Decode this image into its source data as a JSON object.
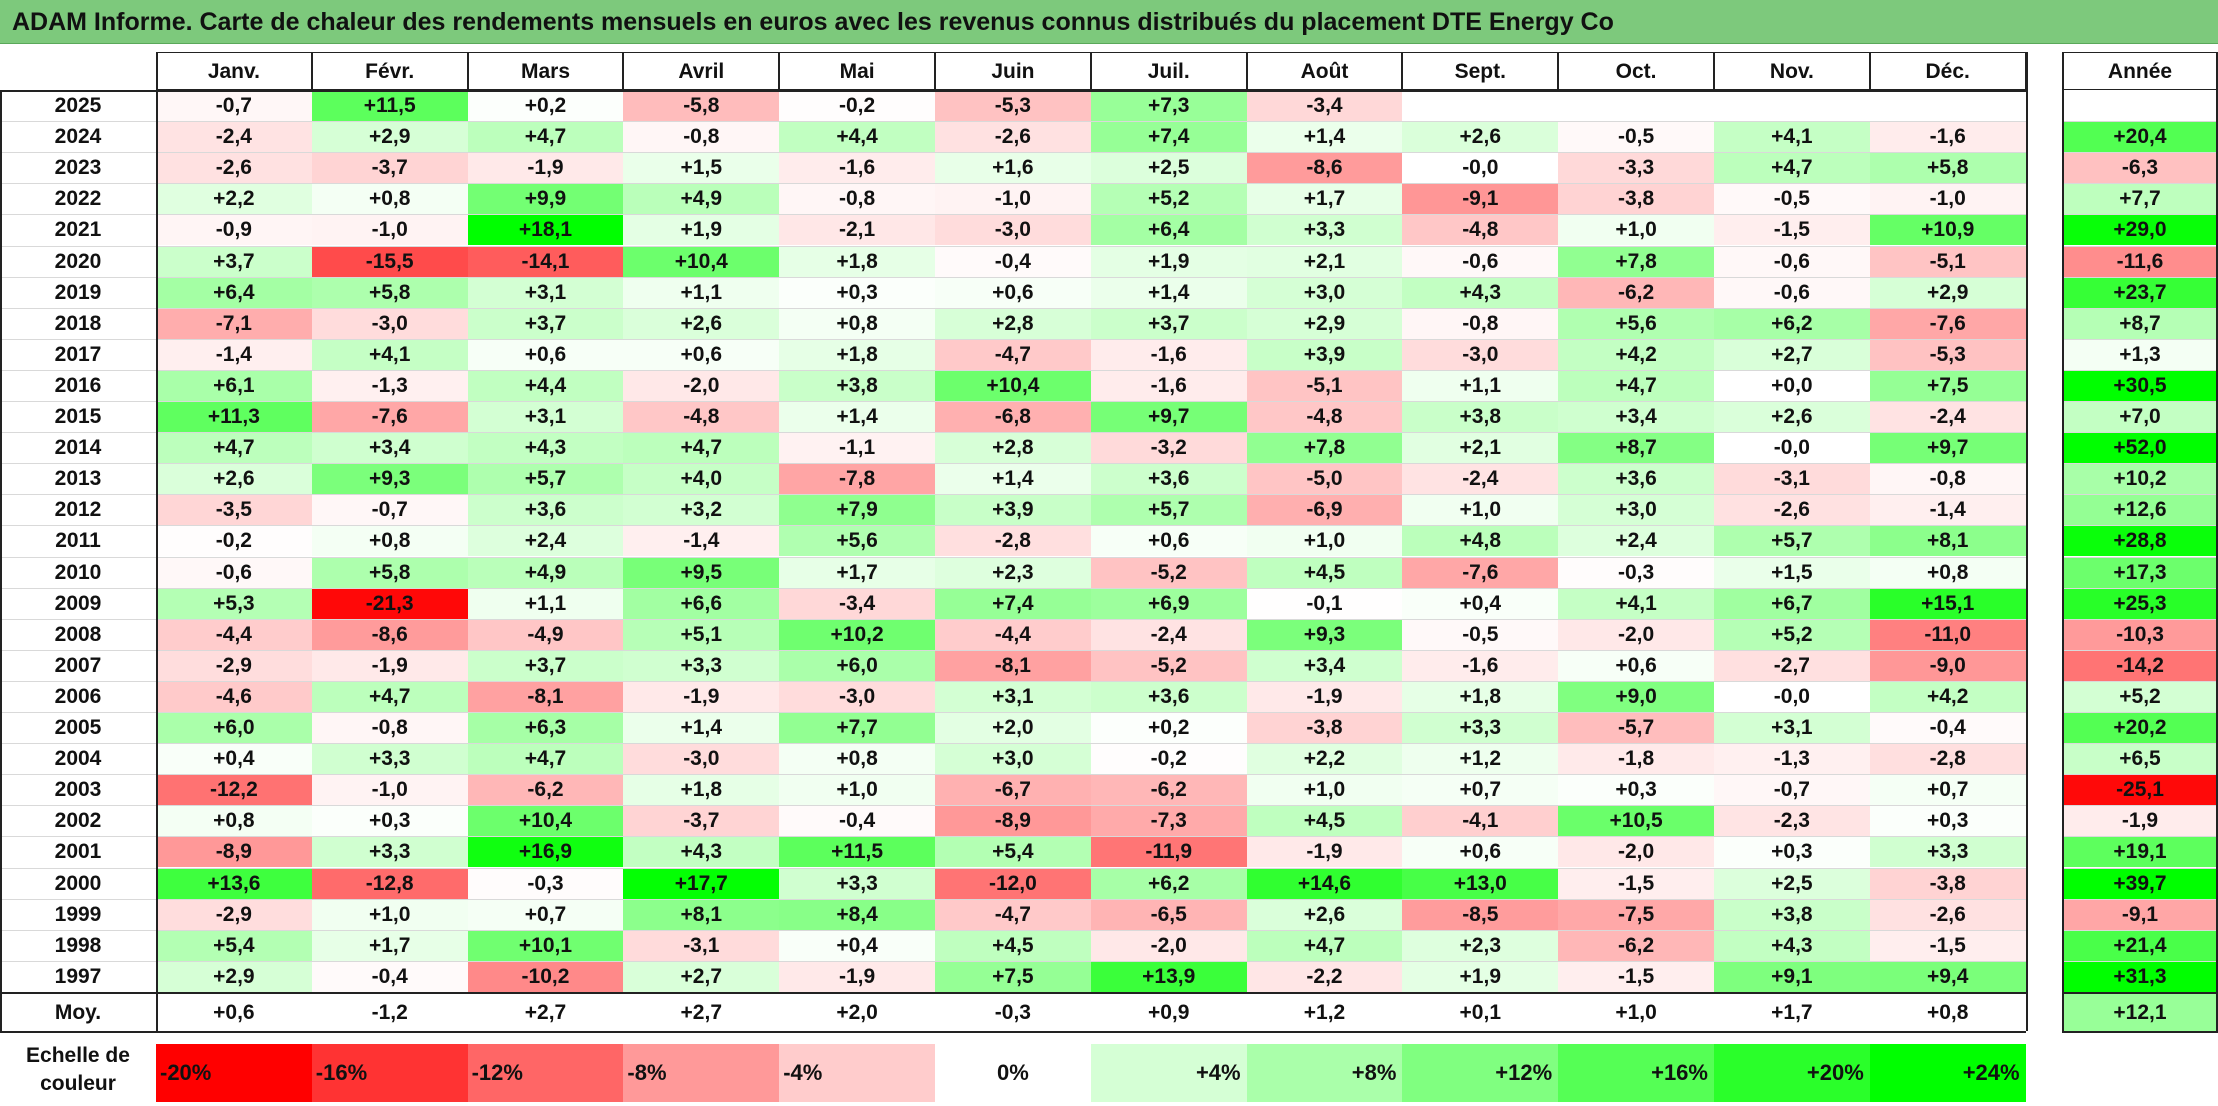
{
  "title": "ADAM Informe. Carte de chaleur des rendements mensuels en euros avec les revenus connus distribués du placement DTE Energy Co",
  "chart_data": {
    "type": "heatmap",
    "months": [
      "Janv.",
      "Févr.",
      "Mars",
      "Avril",
      "Mai",
      "Juin",
      "Juil.",
      "Août",
      "Sept.",
      "Oct.",
      "Nov.",
      "Déc."
    ],
    "annual_header": "Année",
    "rows": [
      {
        "year": "2025",
        "values": [
          "-0,7",
          "+11,5",
          "+0,2",
          "-5,8",
          "-0,2",
          "-5,3",
          "+7,3",
          "-3,4",
          "",
          "",
          "",
          ""
        ],
        "annual": ""
      },
      {
        "year": "2024",
        "values": [
          "-2,4",
          "+2,9",
          "+4,7",
          "-0,8",
          "+4,4",
          "-2,6",
          "+7,4",
          "+1,4",
          "+2,6",
          "-0,5",
          "+4,1",
          "-1,6"
        ],
        "annual": "+20,4"
      },
      {
        "year": "2023",
        "values": [
          "-2,6",
          "-3,7",
          "-1,9",
          "+1,5",
          "-1,6",
          "+1,6",
          "+2,5",
          "-8,6",
          "-0,0",
          "-3,3",
          "+4,7",
          "+5,8"
        ],
        "annual": "-6,3"
      },
      {
        "year": "2022",
        "values": [
          "+2,2",
          "+0,8",
          "+9,9",
          "+4,9",
          "-0,8",
          "-1,0",
          "+5,2",
          "+1,7",
          "-9,1",
          "-3,8",
          "-0,5",
          "-1,0"
        ],
        "annual": "+7,7"
      },
      {
        "year": "2021",
        "values": [
          "-0,9",
          "-1,0",
          "+18,1",
          "+1,9",
          "-2,1",
          "-3,0",
          "+6,4",
          "+3,3",
          "-4,8",
          "+1,0",
          "-1,5",
          "+10,9"
        ],
        "annual": "+29,0"
      },
      {
        "year": "2020",
        "values": [
          "+3,7",
          "-15,5",
          "-14,1",
          "+10,4",
          "+1,8",
          "-0,4",
          "+1,9",
          "+2,1",
          "-0,6",
          "+7,8",
          "-0,6",
          "-5,1"
        ],
        "annual": "-11,6"
      },
      {
        "year": "2019",
        "values": [
          "+6,4",
          "+5,8",
          "+3,1",
          "+1,1",
          "+0,3",
          "+0,6",
          "+1,4",
          "+3,0",
          "+4,3",
          "-6,2",
          "-0,6",
          "+2,9"
        ],
        "annual": "+23,7"
      },
      {
        "year": "2018",
        "values": [
          "-7,1",
          "-3,0",
          "+3,7",
          "+2,6",
          "+0,8",
          "+2,8",
          "+3,7",
          "+2,9",
          "-0,8",
          "+5,6",
          "+6,2",
          "-7,6"
        ],
        "annual": "+8,7"
      },
      {
        "year": "2017",
        "values": [
          "-1,4",
          "+4,1",
          "+0,6",
          "+0,6",
          "+1,8",
          "-4,7",
          "-1,6",
          "+3,9",
          "-3,0",
          "+4,2",
          "+2,7",
          "-5,3"
        ],
        "annual": "+1,3"
      },
      {
        "year": "2016",
        "values": [
          "+6,1",
          "-1,3",
          "+4,4",
          "-2,0",
          "+3,8",
          "+10,4",
          "-1,6",
          "-5,1",
          "+1,1",
          "+4,7",
          "+0,0",
          "+7,5"
        ],
        "annual": "+30,5"
      },
      {
        "year": "2015",
        "values": [
          "+11,3",
          "-7,6",
          "+3,1",
          "-4,8",
          "+1,4",
          "-6,8",
          "+9,7",
          "-4,8",
          "+3,8",
          "+3,4",
          "+2,6",
          "-2,4"
        ],
        "annual": "+7,0"
      },
      {
        "year": "2014",
        "values": [
          "+4,7",
          "+3,4",
          "+4,3",
          "+4,7",
          "-1,1",
          "+2,8",
          "-3,2",
          "+7,8",
          "+2,1",
          "+8,7",
          "-0,0",
          "+9,7"
        ],
        "annual": "+52,0"
      },
      {
        "year": "2013",
        "values": [
          "+2,6",
          "+9,3",
          "+5,7",
          "+4,0",
          "-7,8",
          "+1,4",
          "+3,6",
          "-5,0",
          "-2,4",
          "+3,6",
          "-3,1",
          "-0,8"
        ],
        "annual": "+10,2"
      },
      {
        "year": "2012",
        "values": [
          "-3,5",
          "-0,7",
          "+3,6",
          "+3,2",
          "+7,9",
          "+3,9",
          "+5,7",
          "-6,9",
          "+1,0",
          "+3,0",
          "-2,6",
          "-1,4"
        ],
        "annual": "+12,6"
      },
      {
        "year": "2011",
        "values": [
          "-0,2",
          "+0,8",
          "+2,4",
          "-1,4",
          "+5,6",
          "-2,8",
          "+0,6",
          "+1,0",
          "+4,8",
          "+2,4",
          "+5,7",
          "+8,1"
        ],
        "annual": "+28,8"
      },
      {
        "year": "2010",
        "values": [
          "-0,6",
          "+5,8",
          "+4,9",
          "+9,5",
          "+1,7",
          "+2,3",
          "-5,2",
          "+4,5",
          "-7,6",
          "-0,3",
          "+1,5",
          "+0,8"
        ],
        "annual": "+17,3"
      },
      {
        "year": "2009",
        "values": [
          "+5,3",
          "-21,3",
          "+1,1",
          "+6,6",
          "-3,4",
          "+7,4",
          "+6,9",
          "-0,1",
          "+0,4",
          "+4,1",
          "+6,7",
          "+15,1"
        ],
        "annual": "+25,3"
      },
      {
        "year": "2008",
        "values": [
          "-4,4",
          "-8,6",
          "-4,9",
          "+5,1",
          "+10,2",
          "-4,4",
          "-2,4",
          "+9,3",
          "-0,5",
          "-2,0",
          "+5,2",
          "-11,0"
        ],
        "annual": "-10,3"
      },
      {
        "year": "2007",
        "values": [
          "-2,9",
          "-1,9",
          "+3,7",
          "+3,3",
          "+6,0",
          "-8,1",
          "-5,2",
          "+3,4",
          "-1,6",
          "+0,6",
          "-2,7",
          "-9,0"
        ],
        "annual": "-14,2"
      },
      {
        "year": "2006",
        "values": [
          "-4,6",
          "+4,7",
          "-8,1",
          "-1,9",
          "-3,0",
          "+3,1",
          "+3,6",
          "-1,9",
          "+1,8",
          "+9,0",
          "-0,0",
          "+4,2"
        ],
        "annual": "+5,2"
      },
      {
        "year": "2005",
        "values": [
          "+6,0",
          "-0,8",
          "+6,3",
          "+1,4",
          "+7,7",
          "+2,0",
          "+0,2",
          "-3,8",
          "+3,3",
          "-5,7",
          "+3,1",
          "-0,4"
        ],
        "annual": "+20,2"
      },
      {
        "year": "2004",
        "values": [
          "+0,4",
          "+3,3",
          "+4,7",
          "-3,0",
          "+0,8",
          "+3,0",
          "-0,2",
          "+2,2",
          "+1,2",
          "-1,8",
          "-1,3",
          "-2,8"
        ],
        "annual": "+6,5"
      },
      {
        "year": "2003",
        "values": [
          "-12,2",
          "-1,0",
          "-6,2",
          "+1,8",
          "+1,0",
          "-6,7",
          "-6,2",
          "+1,0",
          "+0,7",
          "+0,3",
          "-0,7",
          "+0,7"
        ],
        "annual": "-25,1"
      },
      {
        "year": "2002",
        "values": [
          "+0,8",
          "+0,3",
          "+10,4",
          "-3,7",
          "-0,4",
          "-8,9",
          "-7,3",
          "+4,5",
          "-4,1",
          "+10,5",
          "-2,3",
          "+0,3"
        ],
        "annual": "-1,9"
      },
      {
        "year": "2001",
        "values": [
          "-8,9",
          "+3,3",
          "+16,9",
          "+4,3",
          "+11,5",
          "+5,4",
          "-11,9",
          "-1,9",
          "+0,6",
          "-2,0",
          "+0,3",
          "+3,3"
        ],
        "annual": "+19,1"
      },
      {
        "year": "2000",
        "values": [
          "+13,6",
          "-12,8",
          "-0,3",
          "+17,7",
          "+3,3",
          "-12,0",
          "+6,2",
          "+14,6",
          "+13,0",
          "-1,5",
          "+2,5",
          "-3,8"
        ],
        "annual": "+39,7"
      },
      {
        "year": "1999",
        "values": [
          "-2,9",
          "+1,0",
          "+0,7",
          "+8,1",
          "+8,4",
          "-4,7",
          "-6,5",
          "+2,6",
          "-8,5",
          "-7,5",
          "+3,8",
          "-2,6"
        ],
        "annual": "-9,1"
      },
      {
        "year": "1998",
        "values": [
          "+5,4",
          "+1,7",
          "+10,1",
          "-3,1",
          "+0,4",
          "+4,5",
          "-2,0",
          "+4,7",
          "+2,3",
          "-6,2",
          "+4,3",
          "-1,5"
        ],
        "annual": "+21,4"
      },
      {
        "year": "1997",
        "values": [
          "+2,9",
          "-0,4",
          "-10,2",
          "+2,7",
          "-1,9",
          "+7,5",
          "+13,9",
          "-2,2",
          "+1,9",
          "-1,5",
          "+9,1",
          "+9,4"
        ],
        "annual": "+31,3"
      }
    ],
    "average_row": {
      "label": "Moy.",
      "values": [
        "+0,6",
        "-1,2",
        "+2,7",
        "+2,7",
        "+2,0",
        "-0,3",
        "+0,9",
        "+1,2",
        "+0,1",
        "+1,0",
        "+1,7",
        "+0,8"
      ],
      "annual": "+12,1"
    },
    "scale": {
      "label": "Echelle de couleur",
      "steps": [
        "-20%",
        "-16%",
        "-12%",
        "-8%",
        "-4%",
        "0%",
        "+4%",
        "+8%",
        "+12%",
        "+16%",
        "+20%",
        "+24%"
      ]
    },
    "colors": {
      "negative_max": "#ff0000",
      "neutral": "#ffffff",
      "positive_max": "#00ff00",
      "title_bar": "#7dc97c"
    }
  }
}
